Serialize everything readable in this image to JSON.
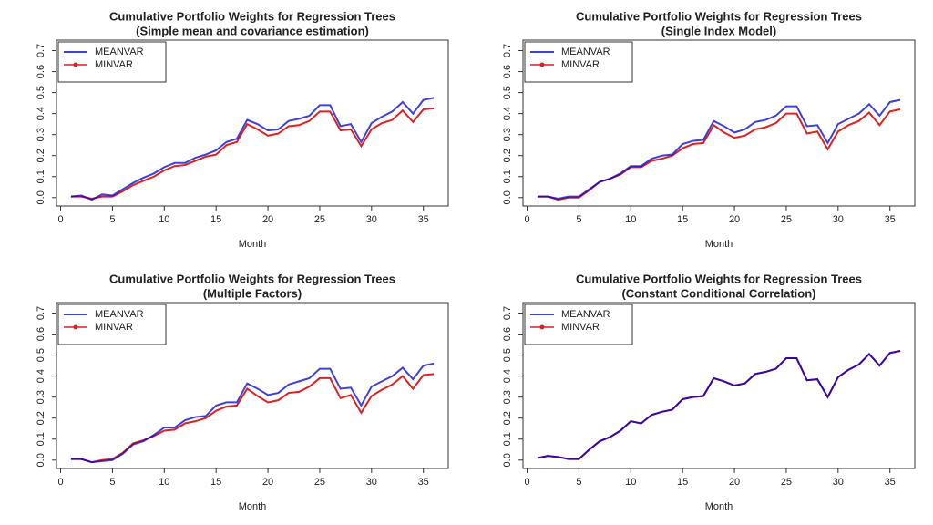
{
  "chart_data": [
    {
      "type": "line",
      "title": "Cumulative Portfolio Weights for Regression Trees",
      "subtitle": "(Simple mean and covariance estimation)",
      "xlabel": "Month",
      "x": [
        1,
        2,
        3,
        4,
        5,
        6,
        7,
        8,
        9,
        10,
        11,
        12,
        13,
        14,
        15,
        16,
        17,
        18,
        19,
        20,
        21,
        22,
        23,
        24,
        25,
        26,
        27,
        28,
        29,
        30,
        31,
        32,
        33,
        34,
        35,
        36
      ],
      "series": [
        {
          "name": "MEANVAR",
          "color": "#0000cd",
          "values": [
            0.005,
            0.01,
            -0.01,
            0.015,
            0.01,
            0.04,
            0.07,
            0.095,
            0.115,
            0.145,
            0.165,
            0.165,
            0.19,
            0.205,
            0.225,
            0.265,
            0.28,
            0.37,
            0.35,
            0.32,
            0.325,
            0.365,
            0.375,
            0.39,
            0.44,
            0.44,
            0.34,
            0.35,
            0.265,
            0.355,
            0.385,
            0.41,
            0.455,
            0.4,
            0.465,
            0.475
          ]
        },
        {
          "name": "MINVAR",
          "color": "#dd2222",
          "values": [
            0.005,
            0.005,
            -0.005,
            0.005,
            0.005,
            0.03,
            0.06,
            0.08,
            0.1,
            0.13,
            0.15,
            0.155,
            0.175,
            0.195,
            0.205,
            0.25,
            0.265,
            0.35,
            0.325,
            0.295,
            0.305,
            0.34,
            0.345,
            0.365,
            0.41,
            0.41,
            0.32,
            0.325,
            0.245,
            0.325,
            0.355,
            0.37,
            0.415,
            0.36,
            0.42,
            0.425
          ]
        }
      ],
      "xlim": [
        -0.4,
        37.4
      ],
      "ylim": [
        -0.04,
        0.75
      ],
      "xticks": [
        0,
        5,
        10,
        15,
        20,
        25,
        30,
        35
      ],
      "yticks": [
        {
          "value": 0,
          "label": "0.0"
        },
        0.1,
        0.2,
        0.3,
        0.4,
        0.5,
        0.6,
        0.7
      ],
      "legend": "top-left"
    },
    {
      "type": "line",
      "title": "Cumulative Portfolio Weights for Regression Trees",
      "subtitle": "(Single Index Model)",
      "xlabel": "Month",
      "x": [
        1,
        2,
        3,
        4,
        5,
        6,
        7,
        8,
        9,
        10,
        11,
        12,
        13,
        14,
        15,
        16,
        17,
        18,
        19,
        20,
        21,
        22,
        23,
        24,
        25,
        26,
        27,
        28,
        29,
        30,
        31,
        32,
        33,
        34,
        35,
        36
      ],
      "series": [
        {
          "name": "MEANVAR",
          "color": "#0000cd",
          "values": [
            0.005,
            0.005,
            -0.005,
            0.005,
            0.005,
            0.04,
            0.075,
            0.09,
            0.115,
            0.15,
            0.15,
            0.185,
            0.2,
            0.205,
            0.255,
            0.27,
            0.275,
            0.365,
            0.34,
            0.31,
            0.325,
            0.36,
            0.37,
            0.39,
            0.435,
            0.435,
            0.34,
            0.345,
            0.26,
            0.35,
            0.375,
            0.4,
            0.445,
            0.39,
            0.455,
            0.465
          ]
        },
        {
          "name": "MINVAR",
          "color": "#dd2222",
          "values": [
            0.005,
            0.005,
            -0.01,
            0,
            0,
            0.035,
            0.075,
            0.09,
            0.11,
            0.145,
            0.145,
            0.175,
            0.185,
            0.2,
            0.235,
            0.255,
            0.26,
            0.345,
            0.31,
            0.285,
            0.295,
            0.325,
            0.335,
            0.355,
            0.4,
            0.4,
            0.305,
            0.315,
            0.23,
            0.315,
            0.345,
            0.365,
            0.405,
            0.345,
            0.41,
            0.42
          ]
        }
      ],
      "xlim": [
        -0.4,
        37.4
      ],
      "ylim": [
        -0.04,
        0.75
      ],
      "xticks": [
        0,
        5,
        10,
        15,
        20,
        25,
        30,
        35
      ],
      "yticks": [
        {
          "value": 0,
          "label": "0.0"
        },
        0.1,
        0.2,
        0.3,
        0.4,
        0.5,
        0.6,
        0.7
      ],
      "legend": "top-left"
    },
    {
      "type": "line",
      "title": "Cumulative Portfolio Weights for Regression Trees",
      "subtitle": "(Multiple Factors)",
      "xlabel": "Month",
      "x": [
        1,
        2,
        3,
        4,
        5,
        6,
        7,
        8,
        9,
        10,
        11,
        12,
        13,
        14,
        15,
        16,
        17,
        18,
        19,
        20,
        21,
        22,
        23,
        24,
        25,
        26,
        27,
        28,
        29,
        30,
        31,
        32,
        33,
        34,
        35,
        36
      ],
      "series": [
        {
          "name": "MEANVAR",
          "color": "#0000cd",
          "values": [
            0.005,
            0.005,
            -0.01,
            -0.005,
            0,
            0.03,
            0.075,
            0.09,
            0.12,
            0.155,
            0.155,
            0.19,
            0.205,
            0.21,
            0.26,
            0.275,
            0.275,
            0.365,
            0.34,
            0.31,
            0.32,
            0.36,
            0.375,
            0.39,
            0.435,
            0.435,
            0.34,
            0.345,
            0.26,
            0.35,
            0.375,
            0.4,
            0.44,
            0.385,
            0.45,
            0.46
          ]
        },
        {
          "name": "MINVAR",
          "color": "#dd2222",
          "values": [
            0.005,
            0.005,
            -0.01,
            0,
            0.005,
            0.035,
            0.08,
            0.095,
            0.115,
            0.14,
            0.145,
            0.175,
            0.185,
            0.2,
            0.235,
            0.255,
            0.26,
            0.34,
            0.305,
            0.275,
            0.285,
            0.32,
            0.325,
            0.35,
            0.39,
            0.39,
            0.295,
            0.31,
            0.225,
            0.305,
            0.335,
            0.36,
            0.4,
            0.34,
            0.405,
            0.41
          ]
        }
      ],
      "xlim": [
        -0.4,
        37.4
      ],
      "ylim": [
        -0.04,
        0.75
      ],
      "xticks": [
        0,
        5,
        10,
        15,
        20,
        25,
        30,
        35
      ],
      "yticks": [
        {
          "value": 0,
          "label": "0.0"
        },
        0.1,
        0.2,
        0.3,
        0.4,
        0.5,
        0.6,
        0.7
      ],
      "legend": "top-left"
    },
    {
      "type": "line",
      "title": "Cumulative Portfolio Weights for Regression Trees",
      "subtitle": "(Constant Conditional Correlation)",
      "xlabel": "Month",
      "x": [
        1,
        2,
        3,
        4,
        5,
        6,
        7,
        8,
        9,
        10,
        11,
        12,
        13,
        14,
        15,
        16,
        17,
        18,
        19,
        20,
        21,
        22,
        23,
        24,
        25,
        26,
        27,
        28,
        29,
        30,
        31,
        32,
        33,
        34,
        35,
        36
      ],
      "series": [
        {
          "name": "MEANVAR",
          "color": "#0000cd",
          "values": [
            0.01,
            0.02,
            0.015,
            0.005,
            0.005,
            0.05,
            0.09,
            0.11,
            0.14,
            0.185,
            0.175,
            0.215,
            0.23,
            0.24,
            0.29,
            0.3,
            0.305,
            0.39,
            0.375,
            0.355,
            0.365,
            0.41,
            0.42,
            0.435,
            0.485,
            0.485,
            0.38,
            0.385,
            0.3,
            0.395,
            0.43,
            0.455,
            0.505,
            0.45,
            0.51,
            0.52
          ]
        },
        {
          "name": "MINVAR",
          "color": "#dd2222",
          "values": [
            0.01,
            0.02,
            0.015,
            0.005,
            0.005,
            0.05,
            0.09,
            0.11,
            0.14,
            0.185,
            0.175,
            0.215,
            0.23,
            0.24,
            0.29,
            0.3,
            0.305,
            0.39,
            0.375,
            0.355,
            0.365,
            0.41,
            0.42,
            0.435,
            0.485,
            0.485,
            0.38,
            0.385,
            0.3,
            0.395,
            0.43,
            0.455,
            0.505,
            0.45,
            0.51,
            0.52
          ]
        }
      ],
      "xlim": [
        -0.4,
        37.4
      ],
      "ylim": [
        -0.04,
        0.75
      ],
      "xticks": [
        0,
        5,
        10,
        15,
        20,
        25,
        30,
        35
      ],
      "yticks": [
        {
          "value": 0,
          "label": "0.0"
        },
        0.1,
        0.2,
        0.3,
        0.4,
        0.5,
        0.6,
        0.7
      ],
      "legend": "top-left"
    }
  ]
}
